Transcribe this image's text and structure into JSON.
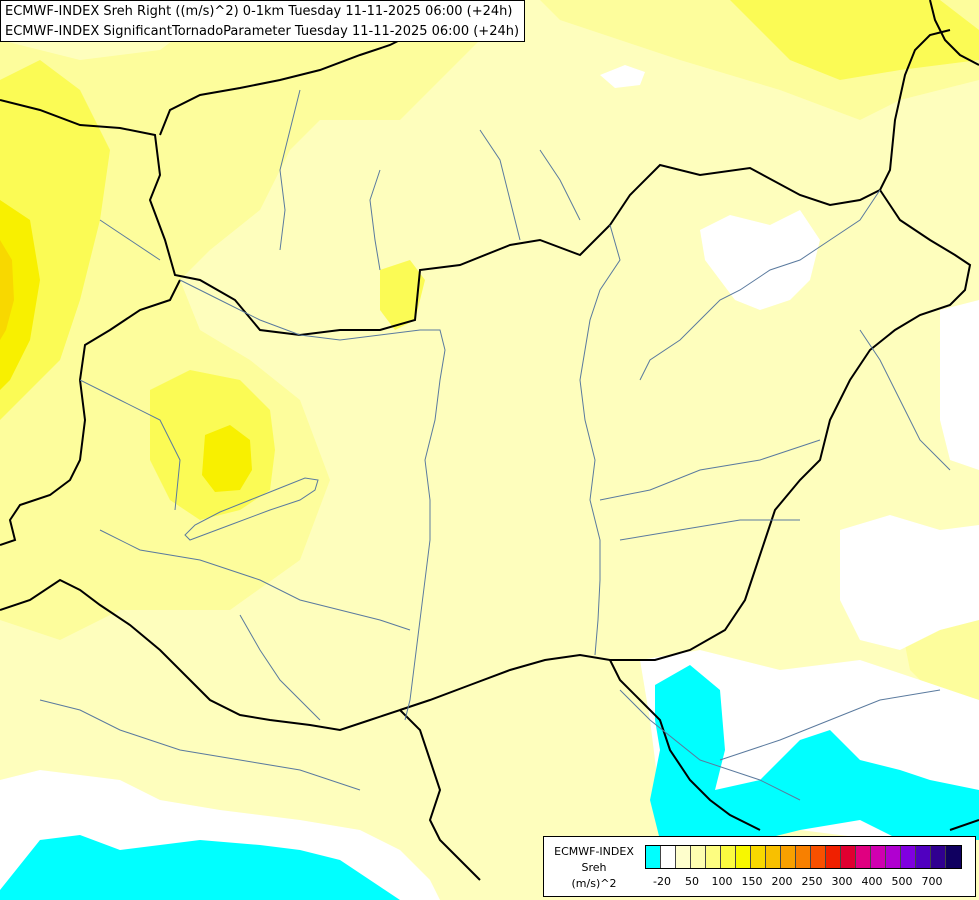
{
  "title": {
    "line1": "ECMWF-INDEX Sreh Right ((m/s)^2) 0-1km Tuesday 11-11-2025 06:00 (+24h)",
    "line2": "ECMWF-INDEX SignificantTornadoParameter Tuesday 11-11-2025 06:00 (+24h)"
  },
  "legend": {
    "line1": "ECMWF-INDEX",
    "line2": "Sreh",
    "line3": "(m/s)^2",
    "colors": [
      "#00ffff",
      "#ffffff",
      "#fefecc",
      "#fefeb0",
      "#fdfd80",
      "#fbfb40",
      "#f7f700",
      "#f8d800",
      "#f8c000",
      "#f8a000",
      "#f88000",
      "#f85000",
      "#f02000",
      "#e00030",
      "#e00080",
      "#d000b0",
      "#b000d0",
      "#8000e0",
      "#5000c0",
      "#300090",
      "#100060"
    ],
    "ticks": [
      "-20",
      "50",
      "100",
      "150",
      "200",
      "250",
      "300",
      "400",
      "500",
      "700"
    ]
  },
  "colors": {
    "background": "#fefebd",
    "yellow_light": "#fdfd9c",
    "yellow": "#fbfb55",
    "yellow_strong": "#f8f000",
    "orange": "#f8d800",
    "white": "#ffffff",
    "cyan": "#00ffff",
    "border": "#000000",
    "river": "#5a7a9e"
  }
}
